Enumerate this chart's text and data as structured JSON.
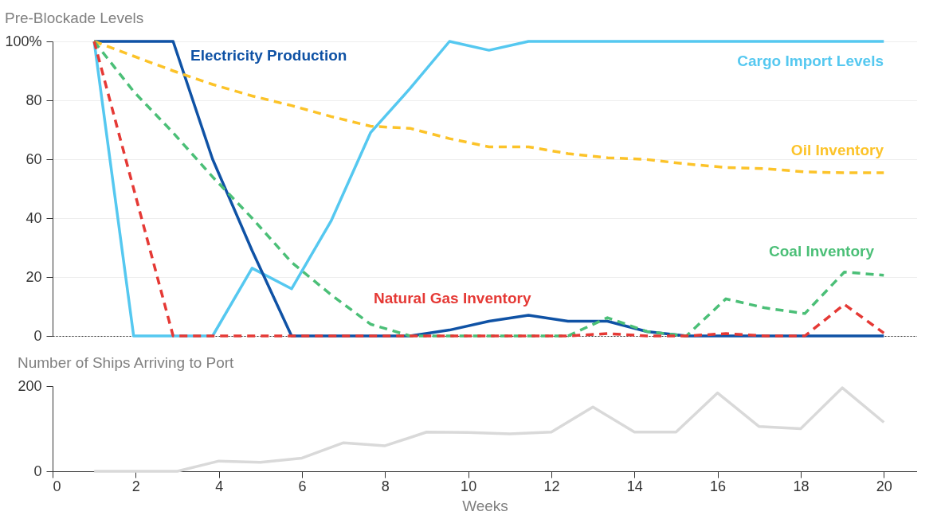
{
  "chart_data": [
    {
      "type": "line",
      "title": "Pre-Blockade Levels",
      "x": [
        1,
        1.95,
        2.9,
        3.85,
        4.8,
        5.75,
        6.7,
        7.65,
        8.6,
        9.55,
        10.5,
        11.45,
        12.4,
        13.35,
        14.3,
        15.25,
        16.2,
        17.15,
        18.1,
        19.05,
        20
      ],
      "series": [
        {
          "name": "Cargo Import Levels",
          "color": "#55c8f0",
          "line_style": "solid",
          "values": [
            100,
            0,
            0,
            0,
            23,
            16,
            39,
            69,
            84,
            100,
            97,
            100,
            100,
            100,
            100,
            100,
            100,
            100,
            100,
            100,
            100
          ]
        },
        {
          "name": "Electricity Production",
          "color": "#0f52a5",
          "line_style": "solid",
          "values": [
            100,
            100,
            100,
            60,
            29,
            0,
            0,
            0,
            0,
            2,
            5,
            7,
            5,
            5,
            1.5,
            0,
            0,
            0,
            0,
            0,
            0
          ]
        },
        {
          "name": "Oil Inventory",
          "color": "#fcc329",
          "line_style": "dashed",
          "values": [
            100,
            95,
            90,
            85.4,
            81.5,
            78.2,
            74.5,
            71.2,
            70.5,
            67,
            64.2,
            64.2,
            61.9,
            60.5,
            59.9,
            58.4,
            57.2,
            56.8,
            55.7,
            55.4,
            55.4
          ]
        },
        {
          "name": "Coal Inventory",
          "color": "#4bbf77",
          "line_style": "dashed",
          "values": [
            100,
            83,
            69,
            54,
            40,
            25,
            14,
            4,
            0,
            0,
            0,
            0,
            0,
            6.2,
            1.5,
            0,
            12.6,
            9.5,
            7.6,
            21.7,
            20.6
          ]
        },
        {
          "name": "Natural Gas Inventory",
          "color": "#e53935",
          "line_style": "dashed",
          "values": [
            100,
            50,
            0,
            0,
            0,
            0,
            0,
            0,
            0,
            0,
            0,
            0,
            0,
            0.8,
            0,
            0,
            0.8,
            0,
            0,
            10.7,
            1
          ]
        }
      ],
      "xlim": [
        0,
        20.8
      ],
      "ylim": [
        0,
        100
      ],
      "yticks": [
        0,
        20,
        40,
        60,
        80,
        {
          "value": 100,
          "label": "100%"
        }
      ],
      "grid": "y",
      "tick_labels": "y"
    },
    {
      "type": "line",
      "title": "Number of Ships Arriving to Port",
      "xlabel": "Weeks",
      "x": [
        1,
        2,
        3,
        4,
        5,
        6,
        7,
        8,
        9,
        10,
        11,
        12,
        13,
        14,
        15,
        16,
        17,
        18,
        19,
        20
      ],
      "series": [
        {
          "color": "#d9d9d9",
          "line_style": "solid",
          "values": [
            0,
            0,
            0,
            24,
            21,
            31,
            67,
            60,
            92,
            91,
            88,
            92,
            151,
            92,
            92,
            184,
            105,
            100,
            196,
            115
          ]
        }
      ],
      "xlim": [
        0,
        20.8
      ],
      "ylim": [
        0,
        200
      ],
      "xticks": [
        0,
        2,
        4,
        6,
        8,
        10,
        12,
        14,
        16,
        18,
        20
      ],
      "yticks": [
        0,
        200
      ]
    }
  ]
}
